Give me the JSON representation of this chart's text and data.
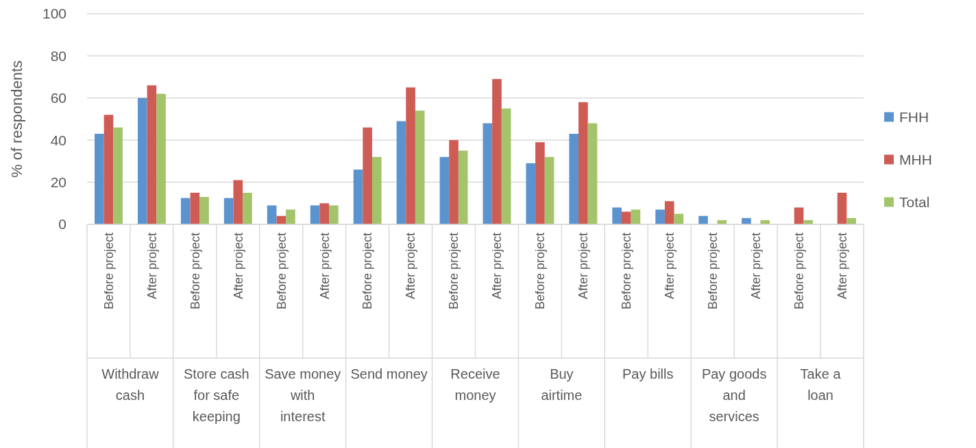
{
  "chart_data": {
    "type": "bar",
    "ylabel": "% of respondents",
    "categories": [
      "Before project",
      "After  project",
      "Before project",
      "After project",
      "Before project",
      "After project",
      "Before project",
      "After project",
      "Before project",
      "After project",
      "Before project",
      "After project",
      "Before project",
      "After project",
      "Before project",
      "After project",
      "Before project",
      "After project"
    ],
    "annotations": [
      "Withdraw cash",
      "Store cash for safe keeping",
      "Save money with interest",
      "Send money",
      "Receive money",
      "Buy airtime",
      "Pay bills",
      "Pay goods and services",
      "Take a loan"
    ],
    "series": [
      {
        "name": "FHH",
        "color": "#5b93cf",
        "values": [
          43,
          60,
          12.5,
          12.5,
          9,
          9,
          26,
          49,
          32,
          48,
          29,
          43,
          8,
          7,
          4,
          3,
          0,
          0
        ]
      },
      {
        "name": "MHH",
        "color": "#cf5b55",
        "values": [
          52,
          66,
          15,
          21,
          4,
          10,
          46,
          65,
          40,
          69,
          39,
          58,
          6,
          11,
          0,
          0,
          8,
          15
        ]
      },
      {
        "name": "Total",
        "color": "#a3c46a",
        "values": [
          46,
          62,
          13,
          15,
          7,
          9,
          32,
          54,
          35,
          55,
          32,
          48,
          7,
          5,
          2,
          2,
          2,
          3
        ]
      }
    ],
    "ylim": [
      0,
      100
    ],
    "yticks": [
      0,
      20,
      40,
      60,
      80,
      100
    ],
    "grid": "y",
    "legend": "right"
  }
}
